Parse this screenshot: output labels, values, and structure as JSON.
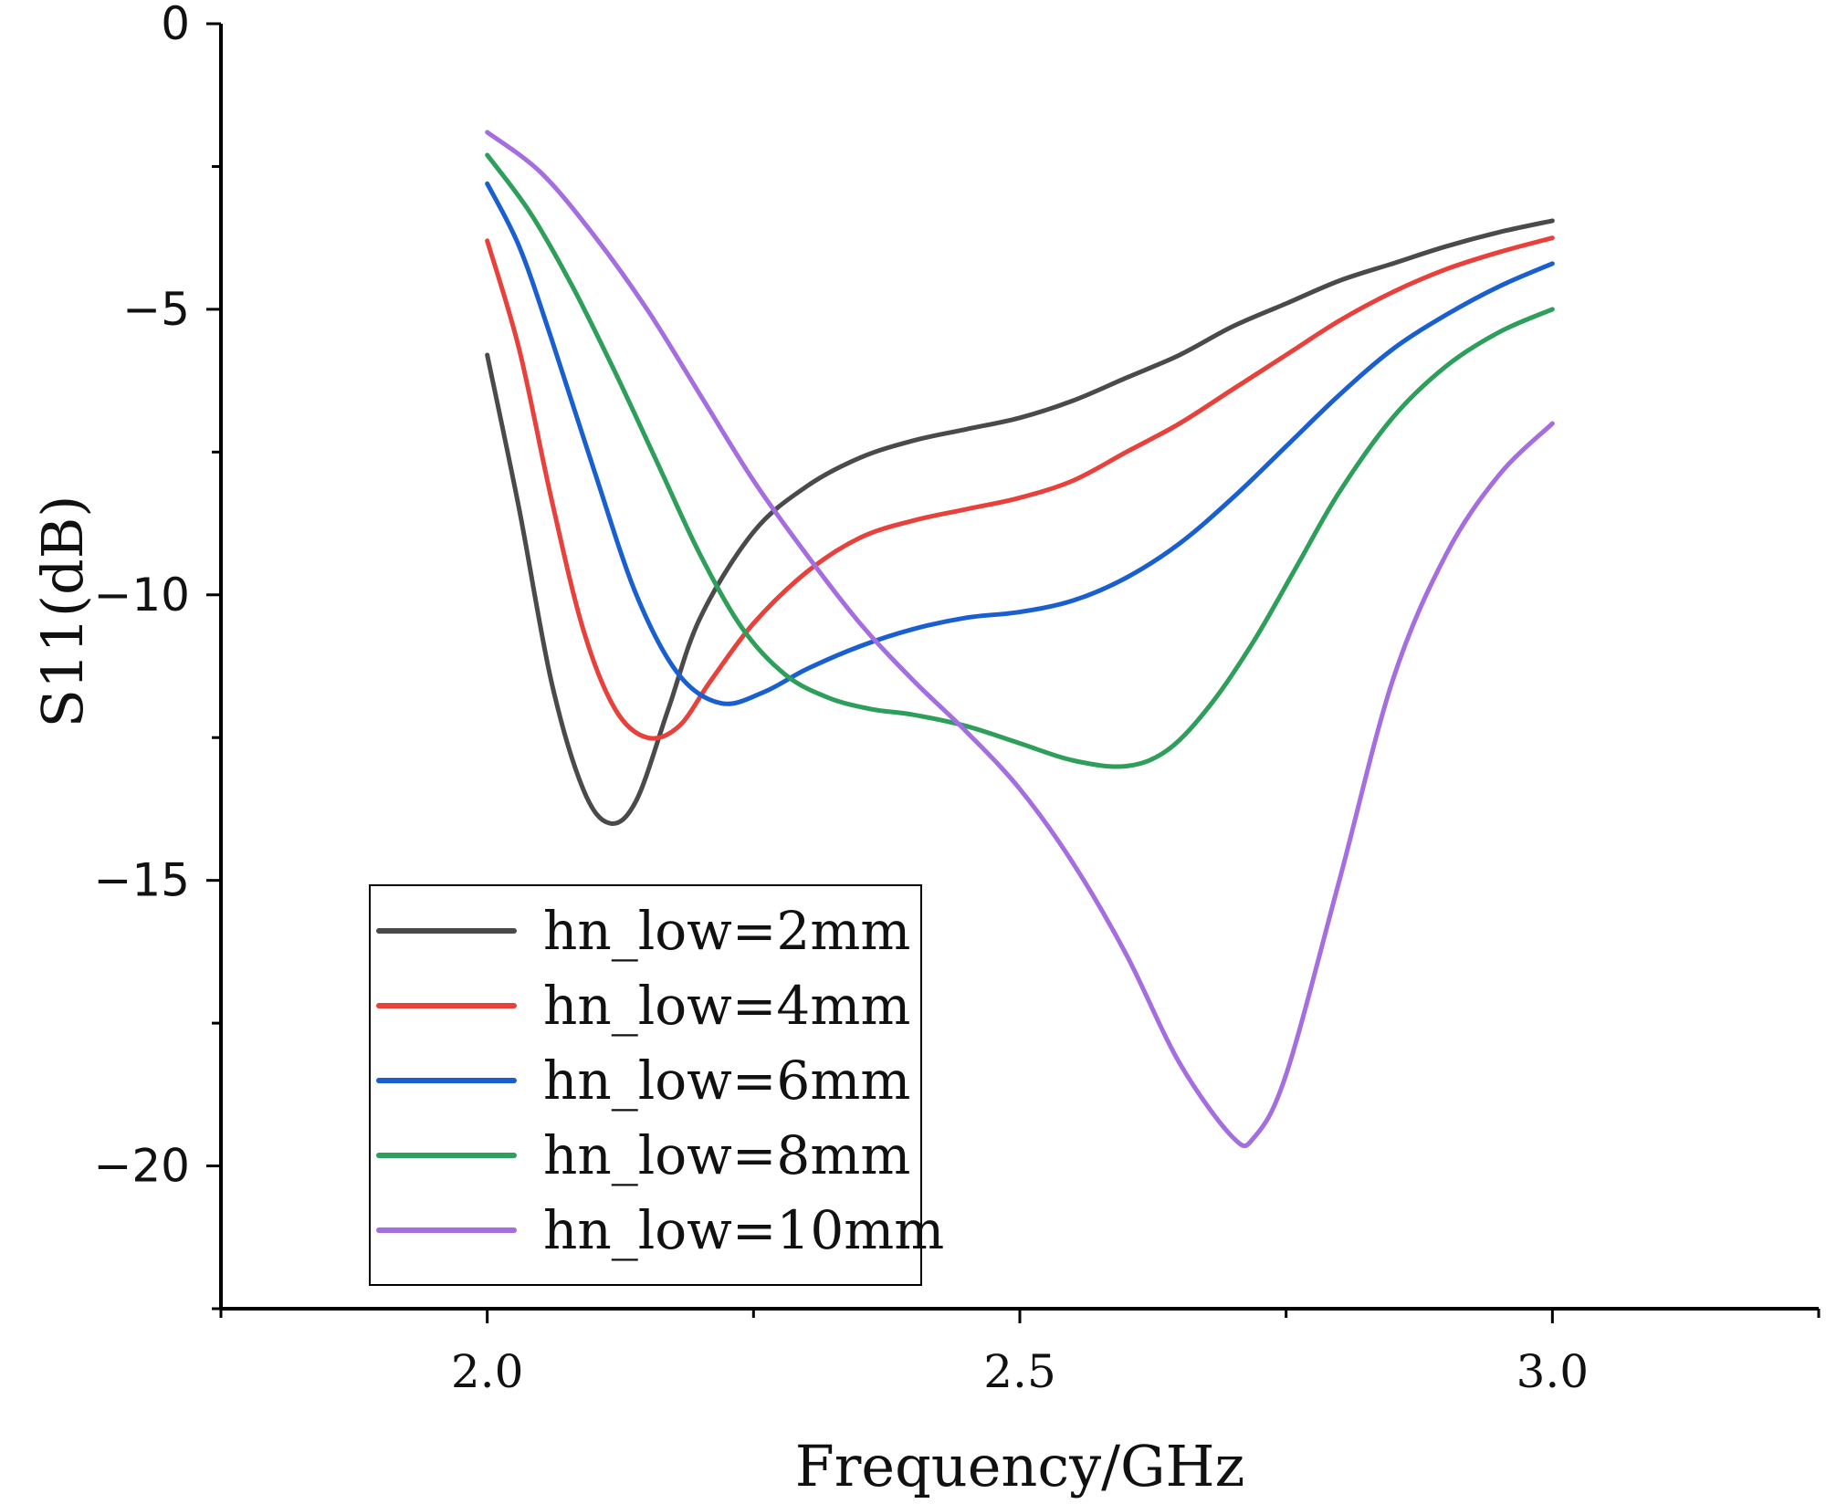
{
  "chart_data": {
    "type": "line",
    "title": "",
    "xlabel": "Frequency/GHz",
    "ylabel": "S11(dB)",
    "xlim": [
      1.75,
      3.25
    ],
    "ylim": [
      -22.5,
      0
    ],
    "x_major_ticks": [
      2.0,
      2.5,
      3.0
    ],
    "x_tick_labels": [
      "2.0",
      "2.5",
      "3.0"
    ],
    "x_minor_ticks": [
      1.75,
      2.25,
      2.75,
      3.25
    ],
    "y_major_ticks": [
      0,
      -5,
      -10,
      -15,
      -20
    ],
    "y_tick_labels": [
      "0",
      "−5",
      "−10",
      "−15",
      "−20"
    ],
    "y_minor_ticks": [
      -2.5,
      -7.5,
      -12.5,
      -17.5,
      -22.5
    ],
    "legend_position": "bottom-left",
    "grid": false,
    "series": [
      {
        "name": "hn_low=2mm",
        "color": "#4a4a4a",
        "points": [
          [
            2.0,
            -5.8
          ],
          [
            2.03,
            -8.5
          ],
          [
            2.06,
            -11.5
          ],
          [
            2.09,
            -13.4
          ],
          [
            2.115,
            -14.0
          ],
          [
            2.14,
            -13.6
          ],
          [
            2.17,
            -12.0
          ],
          [
            2.2,
            -10.4
          ],
          [
            2.25,
            -8.9
          ],
          [
            2.3,
            -8.1
          ],
          [
            2.35,
            -7.6
          ],
          [
            2.4,
            -7.3
          ],
          [
            2.45,
            -7.1
          ],
          [
            2.5,
            -6.9
          ],
          [
            2.55,
            -6.6
          ],
          [
            2.6,
            -6.2
          ],
          [
            2.65,
            -5.8
          ],
          [
            2.7,
            -5.3
          ],
          [
            2.75,
            -4.9
          ],
          [
            2.8,
            -4.5
          ],
          [
            2.85,
            -4.2
          ],
          [
            2.9,
            -3.9
          ],
          [
            2.95,
            -3.65
          ],
          [
            3.0,
            -3.45
          ]
        ]
      },
      {
        "name": "hn_low=4mm",
        "color": "#e8403a",
        "points": [
          [
            2.0,
            -3.8
          ],
          [
            2.03,
            -5.7
          ],
          [
            2.06,
            -8.3
          ],
          [
            2.09,
            -10.6
          ],
          [
            2.12,
            -12.0
          ],
          [
            2.15,
            -12.5
          ],
          [
            2.18,
            -12.3
          ],
          [
            2.21,
            -11.5
          ],
          [
            2.25,
            -10.5
          ],
          [
            2.3,
            -9.6
          ],
          [
            2.35,
            -9.0
          ],
          [
            2.4,
            -8.7
          ],
          [
            2.45,
            -8.5
          ],
          [
            2.5,
            -8.3
          ],
          [
            2.55,
            -8.0
          ],
          [
            2.6,
            -7.5
          ],
          [
            2.65,
            -7.0
          ],
          [
            2.7,
            -6.4
          ],
          [
            2.75,
            -5.8
          ],
          [
            2.8,
            -5.2
          ],
          [
            2.85,
            -4.7
          ],
          [
            2.9,
            -4.3
          ],
          [
            2.95,
            -4.0
          ],
          [
            3.0,
            -3.75
          ]
        ]
      },
      {
        "name": "hn_low=6mm",
        "color": "#1a5fd0",
        "points": [
          [
            2.0,
            -2.8
          ],
          [
            2.03,
            -3.9
          ],
          [
            2.06,
            -5.5
          ],
          [
            2.1,
            -7.8
          ],
          [
            2.14,
            -10.0
          ],
          [
            2.18,
            -11.4
          ],
          [
            2.22,
            -11.9
          ],
          [
            2.26,
            -11.7
          ],
          [
            2.3,
            -11.3
          ],
          [
            2.35,
            -10.9
          ],
          [
            2.4,
            -10.6
          ],
          [
            2.45,
            -10.4
          ],
          [
            2.5,
            -10.3
          ],
          [
            2.55,
            -10.1
          ],
          [
            2.6,
            -9.7
          ],
          [
            2.65,
            -9.1
          ],
          [
            2.7,
            -8.3
          ],
          [
            2.75,
            -7.4
          ],
          [
            2.8,
            -6.5
          ],
          [
            2.85,
            -5.7
          ],
          [
            2.9,
            -5.1
          ],
          [
            2.95,
            -4.6
          ],
          [
            3.0,
            -4.2
          ]
        ]
      },
      {
        "name": "hn_low=8mm",
        "color": "#2e9e5b",
        "points": [
          [
            2.0,
            -2.3
          ],
          [
            2.04,
            -3.3
          ],
          [
            2.08,
            -4.6
          ],
          [
            2.12,
            -6.1
          ],
          [
            2.16,
            -7.7
          ],
          [
            2.2,
            -9.3
          ],
          [
            2.24,
            -10.6
          ],
          [
            2.28,
            -11.4
          ],
          [
            2.32,
            -11.8
          ],
          [
            2.36,
            -12.0
          ],
          [
            2.4,
            -12.1
          ],
          [
            2.45,
            -12.3
          ],
          [
            2.5,
            -12.6
          ],
          [
            2.55,
            -12.9
          ],
          [
            2.6,
            -13.0
          ],
          [
            2.64,
            -12.7
          ],
          [
            2.68,
            -11.9
          ],
          [
            2.72,
            -10.8
          ],
          [
            2.76,
            -9.5
          ],
          [
            2.8,
            -8.2
          ],
          [
            2.85,
            -6.9
          ],
          [
            2.9,
            -6.0
          ],
          [
            2.95,
            -5.4
          ],
          [
            3.0,
            -5.0
          ]
        ]
      },
      {
        "name": "hn_low=10mm",
        "color": "#a56ee0",
        "points": [
          [
            2.0,
            -1.9
          ],
          [
            2.05,
            -2.6
          ],
          [
            2.1,
            -3.7
          ],
          [
            2.15,
            -5.0
          ],
          [
            2.2,
            -6.5
          ],
          [
            2.25,
            -8.0
          ],
          [
            2.3,
            -9.3
          ],
          [
            2.35,
            -10.5
          ],
          [
            2.4,
            -11.5
          ],
          [
            2.45,
            -12.4
          ],
          [
            2.5,
            -13.4
          ],
          [
            2.55,
            -14.7
          ],
          [
            2.6,
            -16.3
          ],
          [
            2.65,
            -18.2
          ],
          [
            2.7,
            -19.5
          ],
          [
            2.72,
            -19.5
          ],
          [
            2.75,
            -18.4
          ],
          [
            2.8,
            -15.0
          ],
          [
            2.85,
            -11.5
          ],
          [
            2.9,
            -9.3
          ],
          [
            2.95,
            -7.9
          ],
          [
            3.0,
            -7.0
          ]
        ]
      }
    ]
  }
}
